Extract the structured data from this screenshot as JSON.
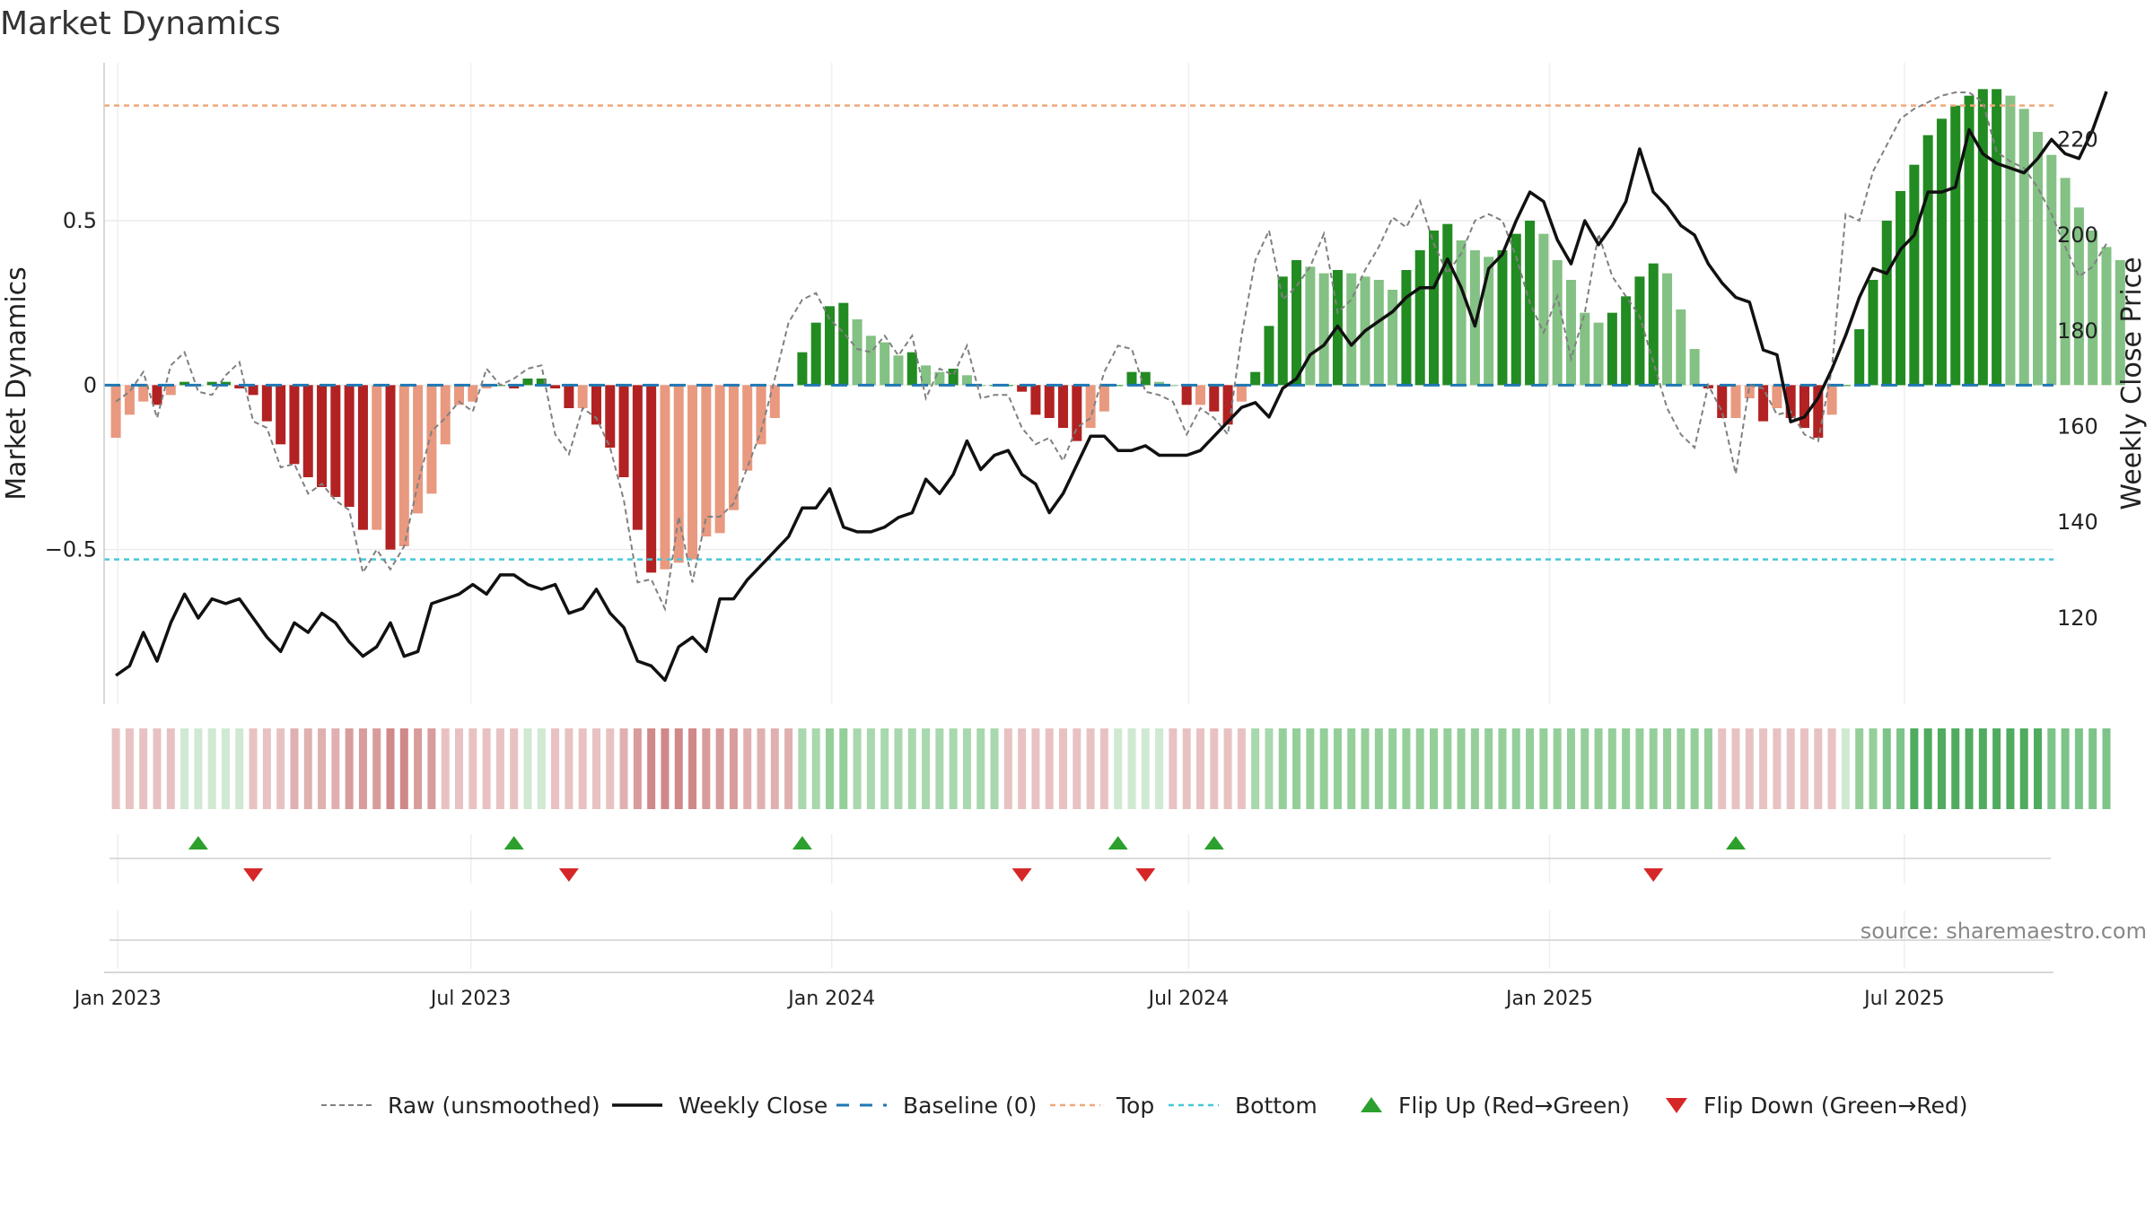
{
  "title": "Market Dynamics",
  "source": "source: sharemaestro.com",
  "chart_data": {
    "type": "bar",
    "x_range": [
      "2022-12-26",
      "2025-09-15"
    ],
    "x_ticks": [
      {
        "date": "2023-01-02",
        "label": "Jan 2023"
      },
      {
        "date": "2023-07-01",
        "label": "Jul 2023"
      },
      {
        "date": "2024-01-01",
        "label": "Jan 2024"
      },
      {
        "date": "2024-07-01",
        "label": "Jul 2024"
      },
      {
        "date": "2025-01-01",
        "label": "Jan 2025"
      },
      {
        "date": "2025-07-01",
        "label": "Jul 2025"
      }
    ],
    "left_axis": {
      "label": "Market Dynamics",
      "ylim": [
        -0.97,
        0.98
      ],
      "ticks": [
        {
          "v": 0.5,
          "label": "0.5"
        },
        {
          "v": 0,
          "label": "0"
        },
        {
          "v": -0.5,
          "label": "−0.5"
        }
      ]
    },
    "right_axis": {
      "label": "Weekly Close Price",
      "ylim": [
        102,
        236
      ],
      "ticks": [
        {
          "v": 120,
          "label": "120"
        },
        {
          "v": 140,
          "label": "140"
        },
        {
          "v": 160,
          "label": "160"
        },
        {
          "v": 180,
          "label": "180"
        },
        {
          "v": 200,
          "label": "200"
        },
        {
          "v": 220,
          "label": "220"
        }
      ]
    },
    "top_level": 0.85,
    "bottom_level": -0.53,
    "start_date": "2023-01-01",
    "dynamics": [
      -0.16,
      -0.09,
      -0.05,
      -0.06,
      -0.03,
      0.01,
      0.0,
      0.01,
      0.01,
      -0.01,
      -0.03,
      -0.11,
      -0.18,
      -0.24,
      -0.28,
      -0.31,
      -0.34,
      -0.37,
      -0.44,
      -0.44,
      -0.5,
      -0.49,
      -0.39,
      -0.33,
      -0.18,
      -0.06,
      -0.05,
      -0.01,
      0.0,
      -0.01,
      0.02,
      0.02,
      -0.01,
      -0.07,
      -0.07,
      -0.12,
      -0.19,
      -0.28,
      -0.44,
      -0.57,
      -0.56,
      -0.54,
      -0.53,
      -0.46,
      -0.45,
      -0.38,
      -0.26,
      -0.18,
      -0.1,
      0.0,
      0.1,
      0.19,
      0.24,
      0.25,
      0.2,
      0.15,
      0.13,
      0.09,
      0.1,
      0.06,
      0.04,
      0.05,
      0.03,
      0.0,
      0.0,
      0.0,
      -0.02,
      -0.09,
      -0.1,
      -0.13,
      -0.17,
      -0.13,
      -0.08,
      0.0,
      0.04,
      0.04,
      0.01,
      0.0,
      -0.06,
      -0.06,
      -0.08,
      -0.12,
      -0.05,
      0.04,
      0.18,
      0.33,
      0.38,
      0.36,
      0.34,
      0.35,
      0.34,
      0.33,
      0.32,
      0.29,
      0.35,
      0.41,
      0.47,
      0.49,
      0.44,
      0.41,
      0.39,
      0.41,
      0.46,
      0.5,
      0.46,
      0.38,
      0.32,
      0.22,
      0.19,
      0.22,
      0.27,
      0.33,
      0.37,
      0.34,
      0.23,
      0.11,
      -0.01,
      -0.1,
      -0.1,
      -0.04,
      -0.11,
      -0.07,
      -0.1,
      -0.13,
      -0.16,
      -0.09,
      0.0,
      0.17,
      0.32,
      0.5,
      0.59,
      0.67,
      0.76,
      0.81,
      0.85,
      0.88,
      0.9,
      0.9,
      0.88,
      0.84,
      0.77,
      0.7,
      0.63,
      0.54,
      0.47,
      0.42,
      0.38
    ],
    "raw": [
      -0.05,
      -0.02,
      0.04,
      -0.1,
      0.06,
      0.1,
      -0.02,
      -0.03,
      0.03,
      0.07,
      -0.11,
      -0.13,
      -0.25,
      -0.24,
      -0.33,
      -0.3,
      -0.35,
      -0.38,
      -0.57,
      -0.5,
      -0.56,
      -0.49,
      -0.3,
      -0.14,
      -0.1,
      -0.05,
      -0.08,
      0.05,
      0.0,
      0.02,
      0.05,
      0.06,
      -0.15,
      -0.21,
      -0.07,
      -0.1,
      -0.19,
      -0.35,
      -0.6,
      -0.59,
      -0.68,
      -0.4,
      -0.6,
      -0.4,
      -0.4,
      -0.36,
      -0.25,
      -0.14,
      0.02,
      0.19,
      0.26,
      0.28,
      0.2,
      0.16,
      0.11,
      0.1,
      0.15,
      0.09,
      0.15,
      -0.04,
      0.05,
      0.03,
      0.12,
      -0.04,
      -0.03,
      -0.03,
      -0.13,
      -0.18,
      -0.16,
      -0.23,
      -0.13,
      -0.1,
      0.04,
      0.12,
      0.11,
      -0.02,
      -0.03,
      -0.05,
      -0.15,
      -0.07,
      -0.1,
      -0.15,
      0.15,
      0.38,
      0.47,
      0.26,
      0.3,
      0.36,
      0.46,
      0.22,
      0.26,
      0.35,
      0.42,
      0.51,
      0.48,
      0.56,
      0.43,
      0.34,
      0.4,
      0.5,
      0.52,
      0.5,
      0.39,
      0.25,
      0.16,
      0.27,
      0.08,
      0.22,
      0.46,
      0.33,
      0.27,
      0.21,
      0.07,
      -0.07,
      -0.15,
      -0.19,
      0.0,
      -0.08,
      -0.27,
      0.0,
      -0.01,
      -0.09,
      -0.08,
      -0.15,
      -0.17,
      0.05,
      0.52,
      0.5,
      0.65,
      0.73,
      0.81,
      0.84,
      0.86,
      0.88,
      0.89,
      0.89,
      0.86,
      0.71,
      0.68,
      0.66,
      0.6,
      0.52,
      0.42,
      0.33,
      0.36,
      0.43
    ],
    "close": [
      108,
      110,
      117,
      111,
      119,
      125,
      120,
      124,
      123,
      124,
      120,
      116,
      113,
      119,
      117,
      121,
      119,
      115,
      112,
      114,
      119,
      112,
      113,
      123,
      124,
      125,
      127,
      125,
      129,
      129,
      127,
      126,
      127,
      121,
      122,
      126,
      121,
      118,
      111,
      110,
      107,
      114,
      116,
      113,
      124,
      124,
      128,
      131,
      134,
      137,
      143,
      143,
      147,
      139,
      138,
      138,
      139,
      141,
      142,
      149,
      146,
      150,
      157,
      151,
      154,
      155,
      150,
      148,
      142,
      146,
      152,
      158,
      158,
      155,
      155,
      156,
      154,
      154,
      154,
      155,
      158,
      161,
      164,
      165,
      162,
      168,
      170,
      175,
      177,
      181,
      177,
      180,
      182,
      184,
      187,
      189,
      189,
      195,
      189,
      181,
      193,
      196,
      203,
      209,
      207,
      199,
      194,
      203,
      198,
      202,
      207,
      218,
      209,
      206,
      202,
      200,
      194,
      190,
      187,
      186,
      176,
      175,
      161,
      162,
      166,
      172,
      179,
      187,
      193,
      192,
      197,
      200,
      209,
      209,
      210,
      222,
      217,
      215,
      214,
      213,
      216,
      220,
      217,
      216,
      222,
      230
    ],
    "regime_levels": [
      -2,
      -2,
      -2,
      -2,
      -2,
      1,
      1,
      1,
      1,
      1,
      -2,
      -2,
      -2,
      -3,
      -3,
      -3,
      -3,
      -4,
      -4,
      -4,
      -5,
      -5,
      -4,
      -4,
      -2,
      -2,
      -2,
      -2,
      -2,
      -2,
      1,
      1,
      -2,
      -2,
      -2,
      -2,
      -2,
      -3,
      -4,
      -5,
      -5,
      -5,
      -5,
      -4,
      -4,
      -4,
      -3,
      -3,
      -3,
      -3,
      2,
      2,
      3,
      3,
      2,
      2,
      2,
      2,
      2,
      2,
      2,
      2,
      2,
      2,
      2,
      -2,
      -2,
      -2,
      -2,
      -2,
      -2,
      -2,
      -2,
      1,
      1,
      1,
      1,
      -2,
      -2,
      -2,
      -2,
      -2,
      -2,
      2,
      2,
      3,
      3,
      3,
      3,
      3,
      3,
      3,
      3,
      3,
      3,
      3,
      3,
      3,
      3,
      3,
      3,
      3,
      3,
      3,
      3,
      3,
      3,
      3,
      3,
      3,
      3,
      3,
      3,
      3,
      3,
      3,
      3,
      -2,
      -2,
      -2,
      -2,
      -2,
      -2,
      -2,
      -2,
      -2,
      1,
      3,
      3,
      4,
      4,
      5,
      5,
      5,
      5,
      5,
      5,
      5,
      5,
      5,
      5,
      4,
      4,
      4,
      4,
      4
    ],
    "flip_up": [
      "2023-02-12",
      "2023-07-23",
      "2023-12-17",
      "2024-05-26",
      "2024-07-14",
      "2025-04-06"
    ],
    "flip_down": [
      "2023-03-12",
      "2023-08-20",
      "2024-04-07",
      "2024-06-09",
      "2025-02-23"
    ],
    "colors": {
      "green_strong": "#228b22",
      "green_light": "#84c184",
      "red_strong": "#b22222",
      "red_light": "#e8997f",
      "top_line": "#f0a878",
      "bottom_line": "#48c8d8",
      "baseline": "#1f77b4",
      "raw_line": "#808080",
      "close_line": "#111111",
      "flip_up": "#2ca02c",
      "flip_down": "#d62728"
    },
    "legend": [
      {
        "key": "raw",
        "label": "Raw (unsmoothed)"
      },
      {
        "key": "close",
        "label": "Weekly Close"
      },
      {
        "key": "baseline",
        "label": "Baseline (0)"
      },
      {
        "key": "top",
        "label": "Top"
      },
      {
        "key": "bottom",
        "label": "Bottom"
      },
      {
        "key": "flip_up",
        "label": "Flip Up (Red→Green)"
      },
      {
        "key": "flip_down",
        "label": "Flip Down (Green→Red)"
      }
    ]
  }
}
